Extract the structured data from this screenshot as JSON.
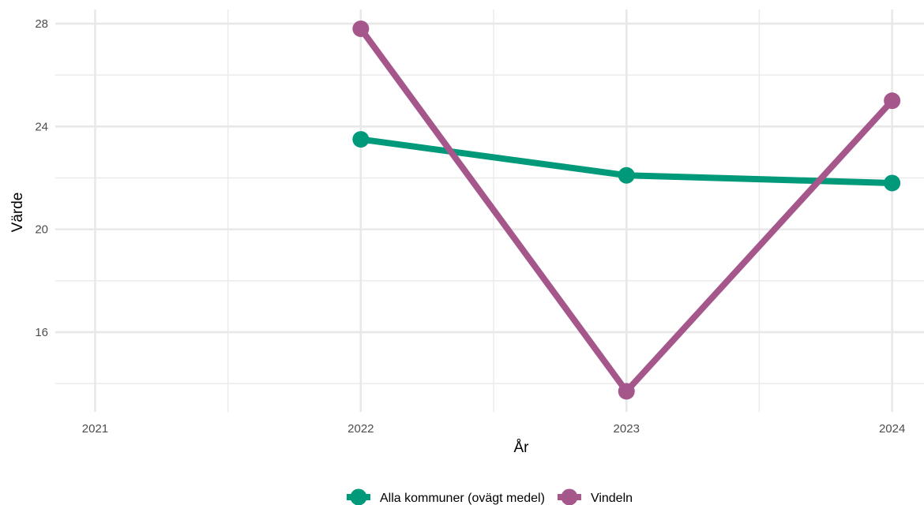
{
  "chart_data": {
    "type": "line",
    "title": "",
    "xlabel": "År",
    "ylabel": "Värde",
    "x": [
      2021,
      2022,
      2023,
      2024
    ],
    "x_tick_labels": [
      "2021",
      "2022",
      "2023",
      "2024"
    ],
    "y_tick_values": [
      16,
      20,
      24,
      28
    ],
    "y_tick_labels": [
      "16",
      "20",
      "24",
      "28"
    ],
    "xlim": [
      2020.85,
      2024.12
    ],
    "ylim": [
      12.9,
      28.55
    ],
    "grid": true,
    "legend_position": "bottom",
    "series": [
      {
        "name": "Alla kommuner (ovägt medel)",
        "color": "#009A7A",
        "x": [
          2022,
          2023,
          2024
        ],
        "values": [
          23.5,
          22.1,
          21.8
        ]
      },
      {
        "name": "Vindeln",
        "color": "#A5578B",
        "x": [
          2022,
          2023,
          2024
        ],
        "values": [
          27.8,
          13.7,
          25.0
        ]
      }
    ]
  }
}
